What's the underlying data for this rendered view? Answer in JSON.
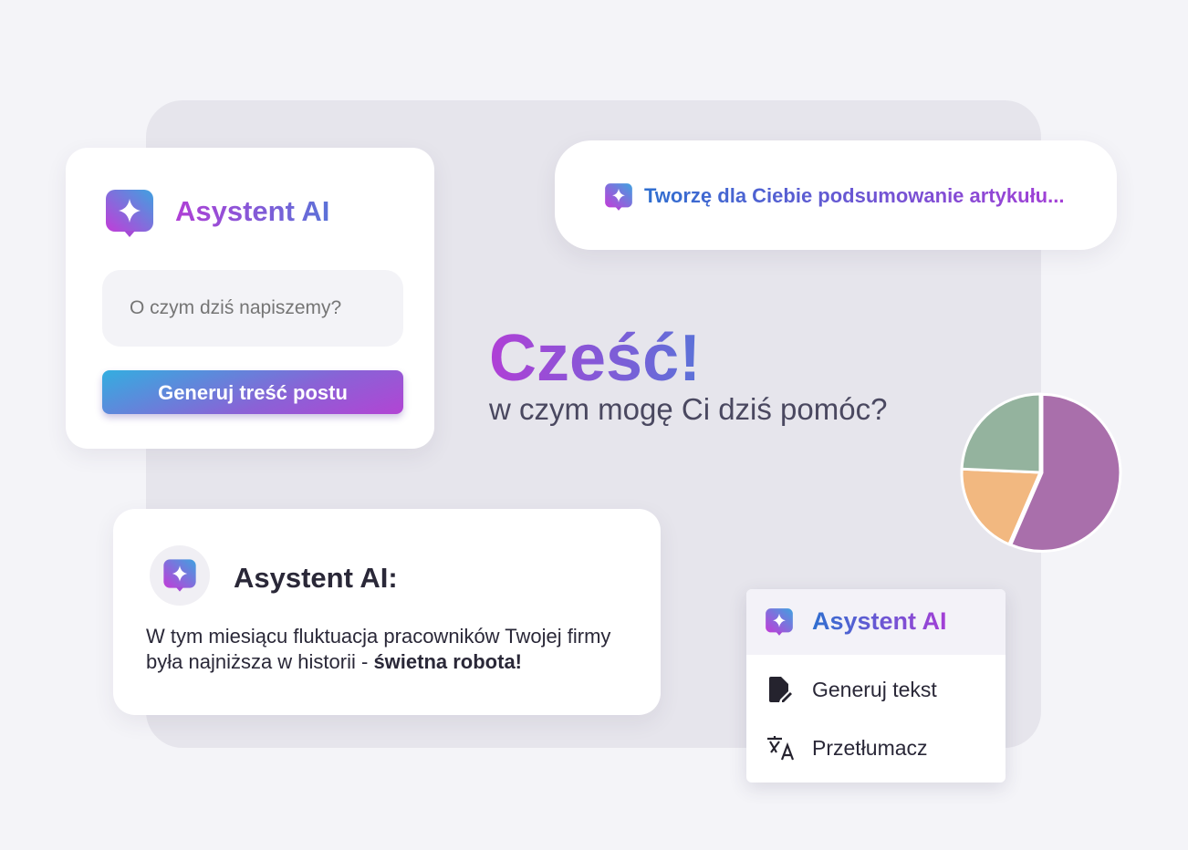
{
  "assistant_card": {
    "title": "Asystent AI",
    "input_placeholder": "O czym dziś napiszemy?",
    "generate_button": "Generuj treść postu"
  },
  "status_bubble": {
    "text": "Tworzę dla Ciebie podsumowanie artykułu..."
  },
  "greeting": {
    "title": "Cześć!",
    "subtitle": "w czym mogę Ci dziś pomóc?"
  },
  "message_card": {
    "title": "Asystent AI:",
    "message": "W tym miesiącu fluktuacja pracowników Twojej firmy była najniższa w historii - ",
    "message_bold": "świetna robota!"
  },
  "menu": {
    "title": "Asystent AI",
    "items": [
      {
        "label": "Generuj tekst",
        "icon": "file-edit-icon"
      },
      {
        "label": "Przetłumacz",
        "icon": "translate-icon"
      }
    ]
  },
  "chart_data": {
    "type": "pie",
    "values": [
      56.5,
      19.2,
      24.3
    ],
    "colors": [
      "#a96fab",
      "#f2b880",
      "#94b39e"
    ]
  },
  "colors": {
    "gradient_start": "#b03fd6",
    "gradient_end": "#5b72d8",
    "background": "#f4f4f8"
  }
}
